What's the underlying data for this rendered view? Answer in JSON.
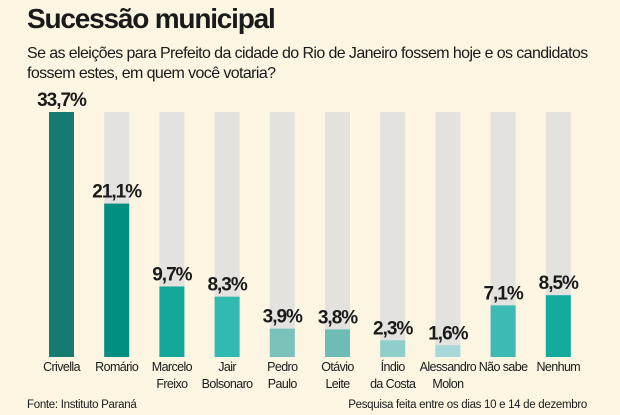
{
  "title": "Sucessão municipal",
  "subtitle": "Se as eleições para Prefeito da cidade do Rio de Janeiro fossem hoje e os candidatos fossem estes, em quem você votaria?",
  "source": "Fonte: Instituto Paraná",
  "note": "Pesquisa feita entre os dias 10 e 14 de dezembro",
  "chart_data": {
    "type": "bar",
    "title": "Sucessão municipal",
    "xlabel": "",
    "ylabel": "",
    "ylim": [
      0,
      33.7
    ],
    "grid": false,
    "categories": [
      [
        "Crivella"
      ],
      [
        "Romário"
      ],
      [
        "Marcelo",
        "Freixo"
      ],
      [
        "Jair",
        "Bolsonaro"
      ],
      [
        "Pedro",
        "Paulo"
      ],
      [
        "Otávio",
        "Leite"
      ],
      [
        "Índio",
        "da Costa"
      ],
      [
        "Alessandro",
        "Molon"
      ],
      [
        "Não sabe"
      ],
      [
        "Nenhum"
      ]
    ],
    "values": [
      33.7,
      21.1,
      9.7,
      8.3,
      3.9,
      3.8,
      2.3,
      1.6,
      7.1,
      8.5
    ],
    "data_labels": [
      "33,7%",
      "21,1%",
      "9,7%",
      "8,3%",
      "3,9%",
      "3,8%",
      "2,3%",
      "1,6%",
      "7,1%",
      "8,5%"
    ],
    "colors": [
      "#177a70",
      "#008f80",
      "#14a89a",
      "#32b9b2",
      "#7cc2bc",
      "#6dbdb6",
      "#8ecfcc",
      "#a6d9d8",
      "#3dbab4",
      "#12ab9c"
    ],
    "track_color": "#e3e2df"
  }
}
